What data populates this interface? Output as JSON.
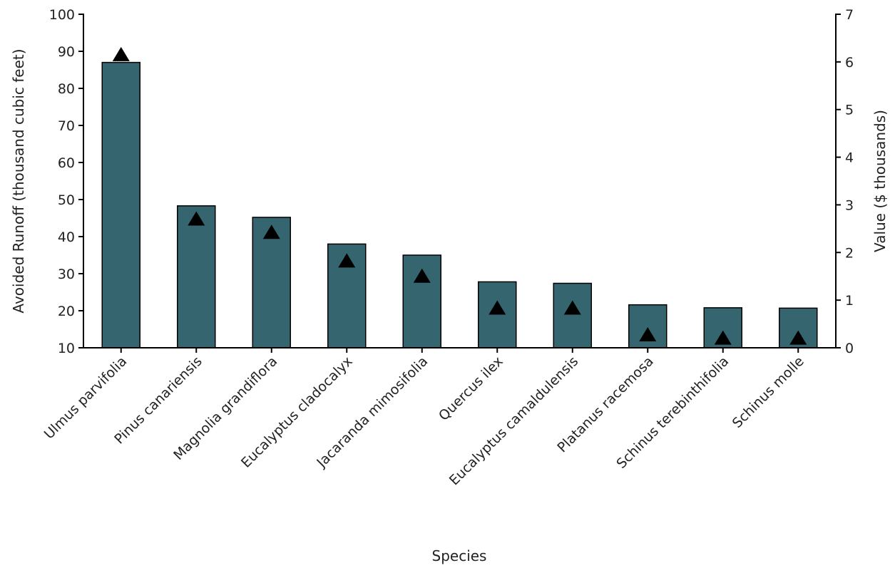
{
  "chart_data": {
    "type": "bar",
    "xlabel": "Species",
    "ylabel": "Avoided Runoff (thousand cubic feet)",
    "y2label": "Value ($ thousands)",
    "ylim": [
      10,
      100
    ],
    "y2lim": [
      0,
      7
    ],
    "yticks": [
      "10",
      "20",
      "30",
      "40",
      "50",
      "60",
      "70",
      "80",
      "90",
      "100"
    ],
    "y2ticks": [
      "0",
      "1",
      "2",
      "3",
      "4",
      "5",
      "6",
      "7"
    ],
    "categories": [
      "Ulmus parvifolia",
      "Pinus canariensis",
      "Magnolia grandiflora",
      "Eucalyptus cladocalyx",
      "Jacaranda mimosifolia",
      "Quercus ilex",
      "Eucalyptus camaldulensis",
      "Platanus racemosa",
      "Schinus terebinthifolia",
      "Schinus molle"
    ],
    "series": [
      {
        "type": "bar",
        "axis": "left",
        "values": [
          87,
          48.3,
          45.2,
          38,
          35,
          27.8,
          27.4,
          21.6,
          20.8,
          20.7
        ]
      },
      {
        "type": "scatter",
        "marker": "triangle",
        "axis": "right",
        "values": [
          6.15,
          2.7,
          2.42,
          1.82,
          1.5,
          0.83,
          0.83,
          0.27,
          0.2,
          0.2
        ]
      }
    ],
    "colors": {
      "bar": "#35656f",
      "bar_edge": "#000000",
      "marker": "#000000",
      "axis": "#000000"
    },
    "grid": false
  }
}
